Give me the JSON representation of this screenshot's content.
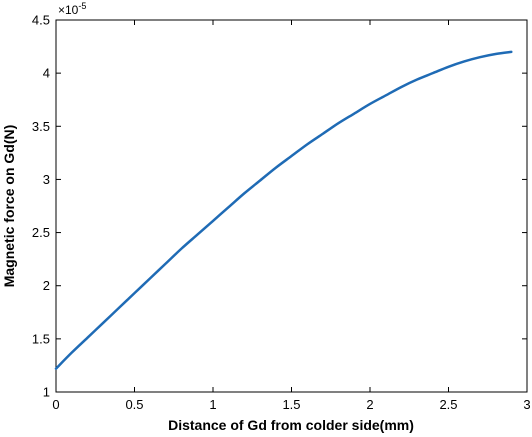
{
  "chart_data": {
    "type": "line",
    "title": "",
    "xlabel": "Distance of Gd from colder side(mm)",
    "ylabel": "Magnetic force on Gd(N)",
    "y_multiplier_text": "×10",
    "y_multiplier_exponent": "-5",
    "xlim": [
      0,
      3
    ],
    "ylim": [
      1,
      4.5
    ],
    "xticks": [
      "0",
      "0.5",
      "1",
      "1.5",
      "2",
      "2.5",
      "3"
    ],
    "yticks": [
      "1",
      "1.5",
      "2",
      "2.5",
      "3",
      "3.5",
      "4",
      "4.5"
    ],
    "grid": false,
    "line_color": "#1f6bb5",
    "series": [
      {
        "x": [
          0,
          0.1,
          0.2,
          0.3,
          0.4,
          0.5,
          0.6,
          0.7,
          0.8,
          0.9,
          1.0,
          1.1,
          1.2,
          1.3,
          1.4,
          1.5,
          1.6,
          1.7,
          1.8,
          1.9,
          2.0,
          2.1,
          2.2,
          2.3,
          2.4,
          2.5,
          2.6,
          2.7,
          2.8,
          2.9
        ],
        "y": [
          1.22,
          1.37,
          1.51,
          1.65,
          1.79,
          1.93,
          2.07,
          2.21,
          2.35,
          2.48,
          2.61,
          2.74,
          2.87,
          2.99,
          3.11,
          3.22,
          3.33,
          3.43,
          3.53,
          3.62,
          3.71,
          3.79,
          3.87,
          3.94,
          4.0,
          4.06,
          4.11,
          4.15,
          4.18,
          4.2
        ]
      }
    ]
  }
}
